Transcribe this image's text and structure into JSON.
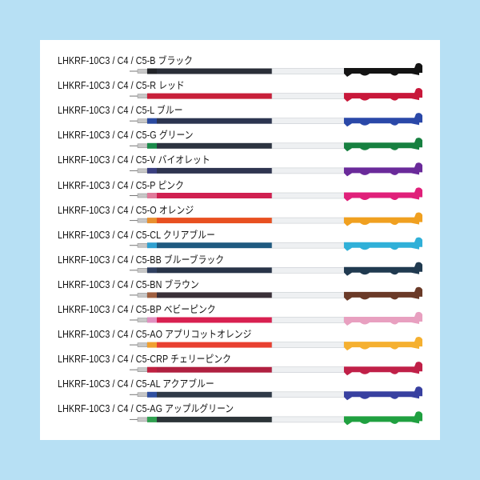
{
  "refills": [
    {
      "code": "LHKRF-10C3 / C4 / C5-B",
      "name": "ブラック",
      "collar": "#222428",
      "ink": "#2a2e38",
      "clip": "#141414"
    },
    {
      "code": "LHKRF-10C3 / C4 / C5-R",
      "name": "レッド",
      "collar": "#c8203a",
      "ink": "#c8203a",
      "clip": "#c8183a"
    },
    {
      "code": "LHKRF-10C3 / C4 / C5-L",
      "name": "ブルー",
      "collar": "#2a4aa0",
      "ink": "#2c3550",
      "clip": "#2a48a8"
    },
    {
      "code": "LHKRF-10C3 / C4 / C5-G",
      "name": "グリーン",
      "collar": "#1a8a4a",
      "ink": "#2c3340",
      "clip": "#178040"
    },
    {
      "code": "LHKRF-10C3 / C4 / C5-V",
      "name": "バイオレット",
      "collar": "#3a3f80",
      "ink": "#2f3550",
      "clip": "#6a2a9a"
    },
    {
      "code": "LHKRF-10C3 / C4 / C5-P",
      "name": "ピンク",
      "collar": "#e07a9a",
      "ink": "#d02050",
      "clip": "#e0207a"
    },
    {
      "code": "LHKRF-10C3 / C4 / C5-O",
      "name": "オレンジ",
      "collar": "#e89030",
      "ink": "#e85020",
      "clip": "#f0a020"
    },
    {
      "code": "LHKRF-10C3 / C4 / C5-CL",
      "name": "クリアブルー",
      "collar": "#30a0d0",
      "ink": "#1f5a80",
      "clip": "#30b0d8"
    },
    {
      "code": "LHKRF-10C3 / C4 / C5-BB",
      "name": "ブルーブラック",
      "collar": "#304060",
      "ink": "#283448",
      "clip": "#203a50"
    },
    {
      "code": "LHKRF-10C3 / C4 / C5-BN",
      "name": "ブラウン",
      "collar": "#a06040",
      "ink": "#3a3038",
      "clip": "#6a3a28"
    },
    {
      "code": "LHKRF-10C3 / C4 / C5-BP",
      "name": "ベビーピンク",
      "collar": "#e090c0",
      "ink": "#d82050",
      "clip": "#e8a0c0"
    },
    {
      "code": "LHKRF-10C3 / C4 / C5-AO",
      "name": "アプリコットオレンジ",
      "collar": "#f0a030",
      "ink": "#e84030",
      "clip": "#f5b030"
    },
    {
      "code": "LHKRF-10C3 / C4 / C5-CRP",
      "name": "チェリーピンク",
      "collar": "#c02040",
      "ink": "#b02040",
      "clip": "#c02048"
    },
    {
      "code": "LHKRF-10C3 / C4 / C5-AL",
      "name": "アクアブルー",
      "collar": "#3050a0",
      "ink": "#303a48",
      "clip": "#3840a0"
    },
    {
      "code": "LHKRF-10C3 / C4 / C5-AG",
      "name": "アップルグリーン",
      "collar": "#30a050",
      "ink": "#2c3438",
      "clip": "#20a040"
    }
  ]
}
